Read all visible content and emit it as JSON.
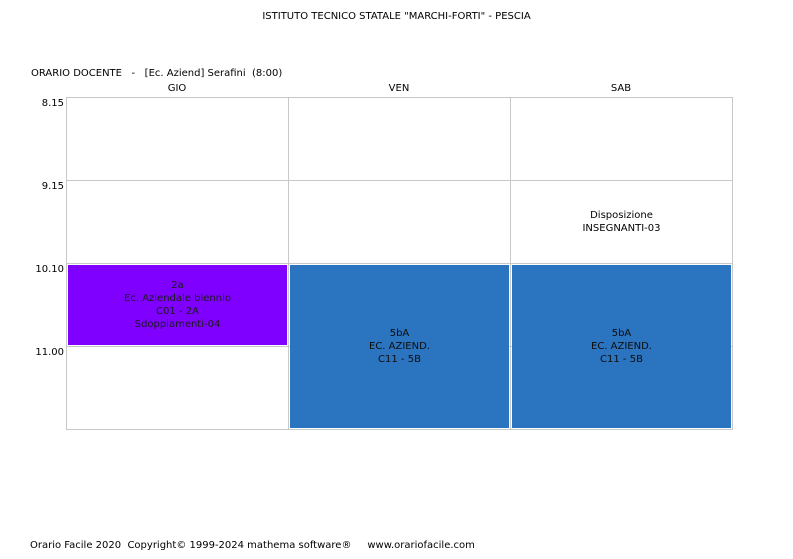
{
  "title": "ISTITUTO TECNICO STATALE \"MARCHI-FORTI\" - PESCIA",
  "subtitle": "ORARIO DOCENTE   -   [Ec. Aziend] Serafini  (8:00)",
  "days": [
    "GIO",
    "VEN",
    "SAB"
  ],
  "times": [
    "8.15",
    "9.15",
    "10.10",
    "11.00"
  ],
  "cells": {
    "sat_slot2": {
      "lines": [
        "Disposizione",
        "INSEGNANTI-03"
      ]
    },
    "thu_slot3": {
      "lines": [
        "2a",
        "Ec. Aziendale biennio",
        "C01 - 2A",
        "Sdoppiamenti-04"
      ],
      "color": "#8000ff"
    },
    "fri_slot34": {
      "lines": [
        "5bA",
        "EC. AZIEND.",
        "C11 - 5B"
      ],
      "color": "#2a74c0"
    },
    "sat_slot34": {
      "lines": [
        "5bA",
        "EC. AZIEND.",
        "C11 - 5B"
      ],
      "color": "#2a74c0"
    }
  },
  "footer": "Orario Facile 2020  Copyright© 1999-2024 mathema software®     www.orariofacile.com"
}
